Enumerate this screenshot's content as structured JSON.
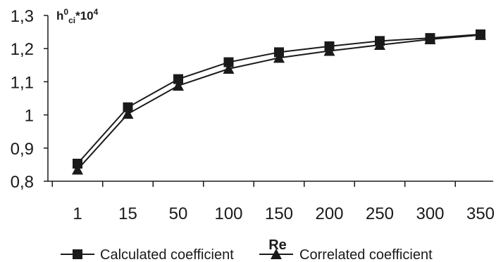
{
  "chart_data": {
    "type": "line",
    "categories": [
      "1",
      "15",
      "50",
      "100",
      "150",
      "200",
      "250",
      "300",
      "350"
    ],
    "series": [
      {
        "name": "Calculated coefficient",
        "marker": "square",
        "values": [
          0.853,
          1.023,
          1.108,
          1.159,
          1.189,
          1.207,
          1.223,
          1.232,
          1.243
        ]
      },
      {
        "name": "Correlated coefficient",
        "marker": "triangle",
        "values": [
          0.835,
          1.003,
          1.088,
          1.139,
          1.172,
          1.193,
          1.211,
          1.228,
          1.241
        ]
      }
    ],
    "ylabel": {
      "base": "h",
      "sup": "0",
      "sub": "ci",
      "suffix": "*10",
      "suffix_sup": "4"
    },
    "xlabel": "Re",
    "ylim": [
      0.8,
      1.3
    ],
    "yticks": [
      "0,8",
      "0,9",
      "1",
      "1,1",
      "1,2",
      "1,3"
    ],
    "ytick_values": [
      0.8,
      0.9,
      1.0,
      1.1,
      1.2,
      1.3
    ],
    "grid": false,
    "legend_position": "bottom",
    "line_color": "#1a1a1a"
  }
}
